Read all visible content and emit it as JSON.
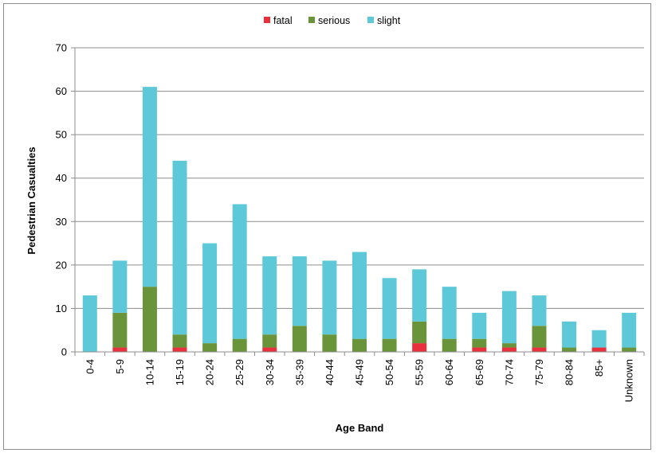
{
  "chart_data": {
    "type": "bar",
    "stacked": true,
    "title": "",
    "xlabel": "Age Band",
    "ylabel": "Pedestrian Casualties",
    "ylim": [
      0,
      70
    ],
    "yticks": [
      0,
      10,
      20,
      30,
      40,
      50,
      60,
      70
    ],
    "grid": true,
    "legend_position": "top",
    "categories": [
      "0-4",
      "5-9",
      "10-14",
      "15-19",
      "20-24",
      "25-29",
      "30-34",
      "35-39",
      "40-44",
      "45-49",
      "50-54",
      "55-59",
      "60-64",
      "65-69",
      "70-74",
      "75-79",
      "80-84",
      "85+",
      "Unknown"
    ],
    "series": [
      {
        "name": "fatal",
        "color": "#e8313c",
        "values": [
          0,
          1,
          0,
          1,
          0,
          0,
          1,
          0,
          0,
          0,
          0,
          2,
          0,
          1,
          1,
          1,
          0,
          1,
          0
        ]
      },
      {
        "name": "serious",
        "color": "#6a943a",
        "values": [
          0,
          8,
          15,
          3,
          2,
          3,
          3,
          6,
          4,
          3,
          3,
          5,
          3,
          2,
          1,
          5,
          1,
          0,
          1
        ]
      },
      {
        "name": "slight",
        "color": "#5dc9d8",
        "values": [
          13,
          12,
          46,
          40,
          23,
          31,
          18,
          16,
          17,
          20,
          14,
          12,
          12,
          6,
          12,
          7,
          6,
          4,
          8
        ]
      }
    ]
  }
}
